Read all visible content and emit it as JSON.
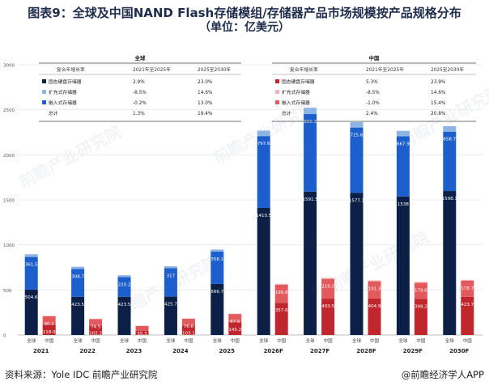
{
  "title_line1": "图表9：全球及中国NAND Flash存储模组/存储器产品市场规模按产品规格分布",
  "title_line2": "（单位：亿美元）",
  "source": "资料来源：Yole IDC 前瞻产业研究院",
  "brand": "@前瞻经济学人APP",
  "watermark": "前瞻产业研究院",
  "colors": {
    "global_ssd": "#0c1f47",
    "global_expand": "#8eb4e3",
    "global_embedded": "#1c5ecb",
    "china_ssd": "#c0272d",
    "china_expand": "#f3b3b3",
    "china_embedded": "#e35a5e"
  },
  "legend_tables": [
    {
      "name": "global",
      "title": "全球",
      "headers": [
        "复合年增长率",
        "2021年至2025年",
        "2025至2030年"
      ],
      "rows": [
        {
          "label": "固态硬盘存储器",
          "c1": "2.9%",
          "c2": "23.0%",
          "color_key": "global_ssd"
        },
        {
          "label": "扩充式存储器",
          "c1": "-8.5%",
          "c2": "14.6%",
          "color_key": "global_expand"
        },
        {
          "label": "嵌入式存储器",
          "c1": "-0.2%",
          "c2": "13.0%",
          "color_key": "global_embedded"
        },
        {
          "label": "总计",
          "c1": "1.3%",
          "c2": "19.4%",
          "color_key": ""
        }
      ]
    },
    {
      "name": "china",
      "title": "中国",
      "headers": [
        "复合年增长率",
        "2021年至2025年",
        "2025至2030年"
      ],
      "rows": [
        {
          "label": "固态硬盘存储器",
          "c1": "5.3%",
          "c2": "23.9%",
          "color_key": "china_ssd"
        },
        {
          "label": "扩充式存储器",
          "c1": "-8.5%",
          "c2": "14.6%",
          "color_key": "china_expand"
        },
        {
          "label": "嵌入式存储器",
          "c1": "-1.0%",
          "c2": "15.4%",
          "color_key": "china_embedded"
        },
        {
          "label": "总计",
          "c1": "2.4%",
          "c2": "20.8%",
          "color_key": ""
        }
      ]
    }
  ],
  "chart_data": {
    "type": "bar",
    "stacked": true,
    "grouped": true,
    "ylim": [
      0,
      3000
    ],
    "yticks": [
      0,
      500,
      1000,
      1500,
      2000,
      2500,
      3000
    ],
    "categories": [
      "2021",
      "2022",
      "2023",
      "2024",
      "2025",
      "2026F",
      "2027F",
      "2028F",
      "2029F",
      "2030F"
    ],
    "group_labels": [
      "全球",
      "中国"
    ],
    "groups": [
      {
        "name": "全球",
        "series": [
          {
            "name": "固态硬盘存储器",
            "color_key": "global_ssd",
            "values": [
              504.6,
              423.5,
              423.5,
              425.7,
              566.7,
              1410.5,
              1591.5,
              1577.1,
              1538,
              1598.3
            ],
            "labels": [
              "504.6",
              "423.5",
              "423.5",
              "425.7",
              "566.7",
              "1410.5",
              "1591.5",
              "1577.1",
              "1538",
              "1598.3"
            ]
          },
          {
            "name": "嵌入式存储器",
            "color_key": "global_embedded",
            "values": [
              361.5,
              308.7,
              220.2,
              317,
              358.1,
              797.6,
              860.3,
              725.6,
              667.9,
              658.7
            ],
            "labels": [
              "361.5",
              "308.7",
              "220.2",
              "317",
              "358.1",
              "797.6",
              "860.3",
              "725.6",
              "667.9",
              "658.7"
            ]
          },
          {
            "name": "扩充式存储器",
            "color_key": "global_expand",
            "values": [
              30,
              25,
              20,
              20,
              24,
              60,
              70,
              60,
              60,
              60
            ],
            "labels": [
              "",
              "",
              "",
              "",
              "",
              "",
              "",
              "",
              "",
              ""
            ]
          }
        ]
      },
      {
        "name": "中国",
        "series": [
          {
            "name": "固态硬盘存储器",
            "color_key": "china_ssd",
            "values": [
              118,
              102.2,
              45.2,
              103.1,
              145.2,
              357.6,
              403.5,
              404.9,
              399.2,
              423.7
            ],
            "labels": [
              "118.0",
              "102.2",
              "45.2",
              "103.1",
              "145.2",
              "357.6",
              "403.5",
              "404.9",
              "399.2",
              "423.7"
            ]
          },
          {
            "name": "嵌入式存储器",
            "color_key": "china_embedded",
            "values": [
              90.1,
              74.5,
              55.3,
              76.6,
              87.6,
              199.8,
              219.2,
              191.3,
              179.6,
              178.7
            ],
            "labels": [
              "90.1",
              "74.5",
              "55.3",
              "76.6",
              "87.6",
              "199.8",
              "219.2",
              "191.3",
              "179.6",
              "178.7"
            ]
          },
          {
            "name": "扩充式存储器",
            "color_key": "china_expand",
            "values": [
              5,
              4,
              3,
              4,
              4,
              10,
              12,
              10,
              10,
              10
            ],
            "labels": [
              "",
              "",
              "",
              "",
              "",
              "",
              "",
              "",
              "",
              ""
            ]
          }
        ]
      }
    ]
  }
}
